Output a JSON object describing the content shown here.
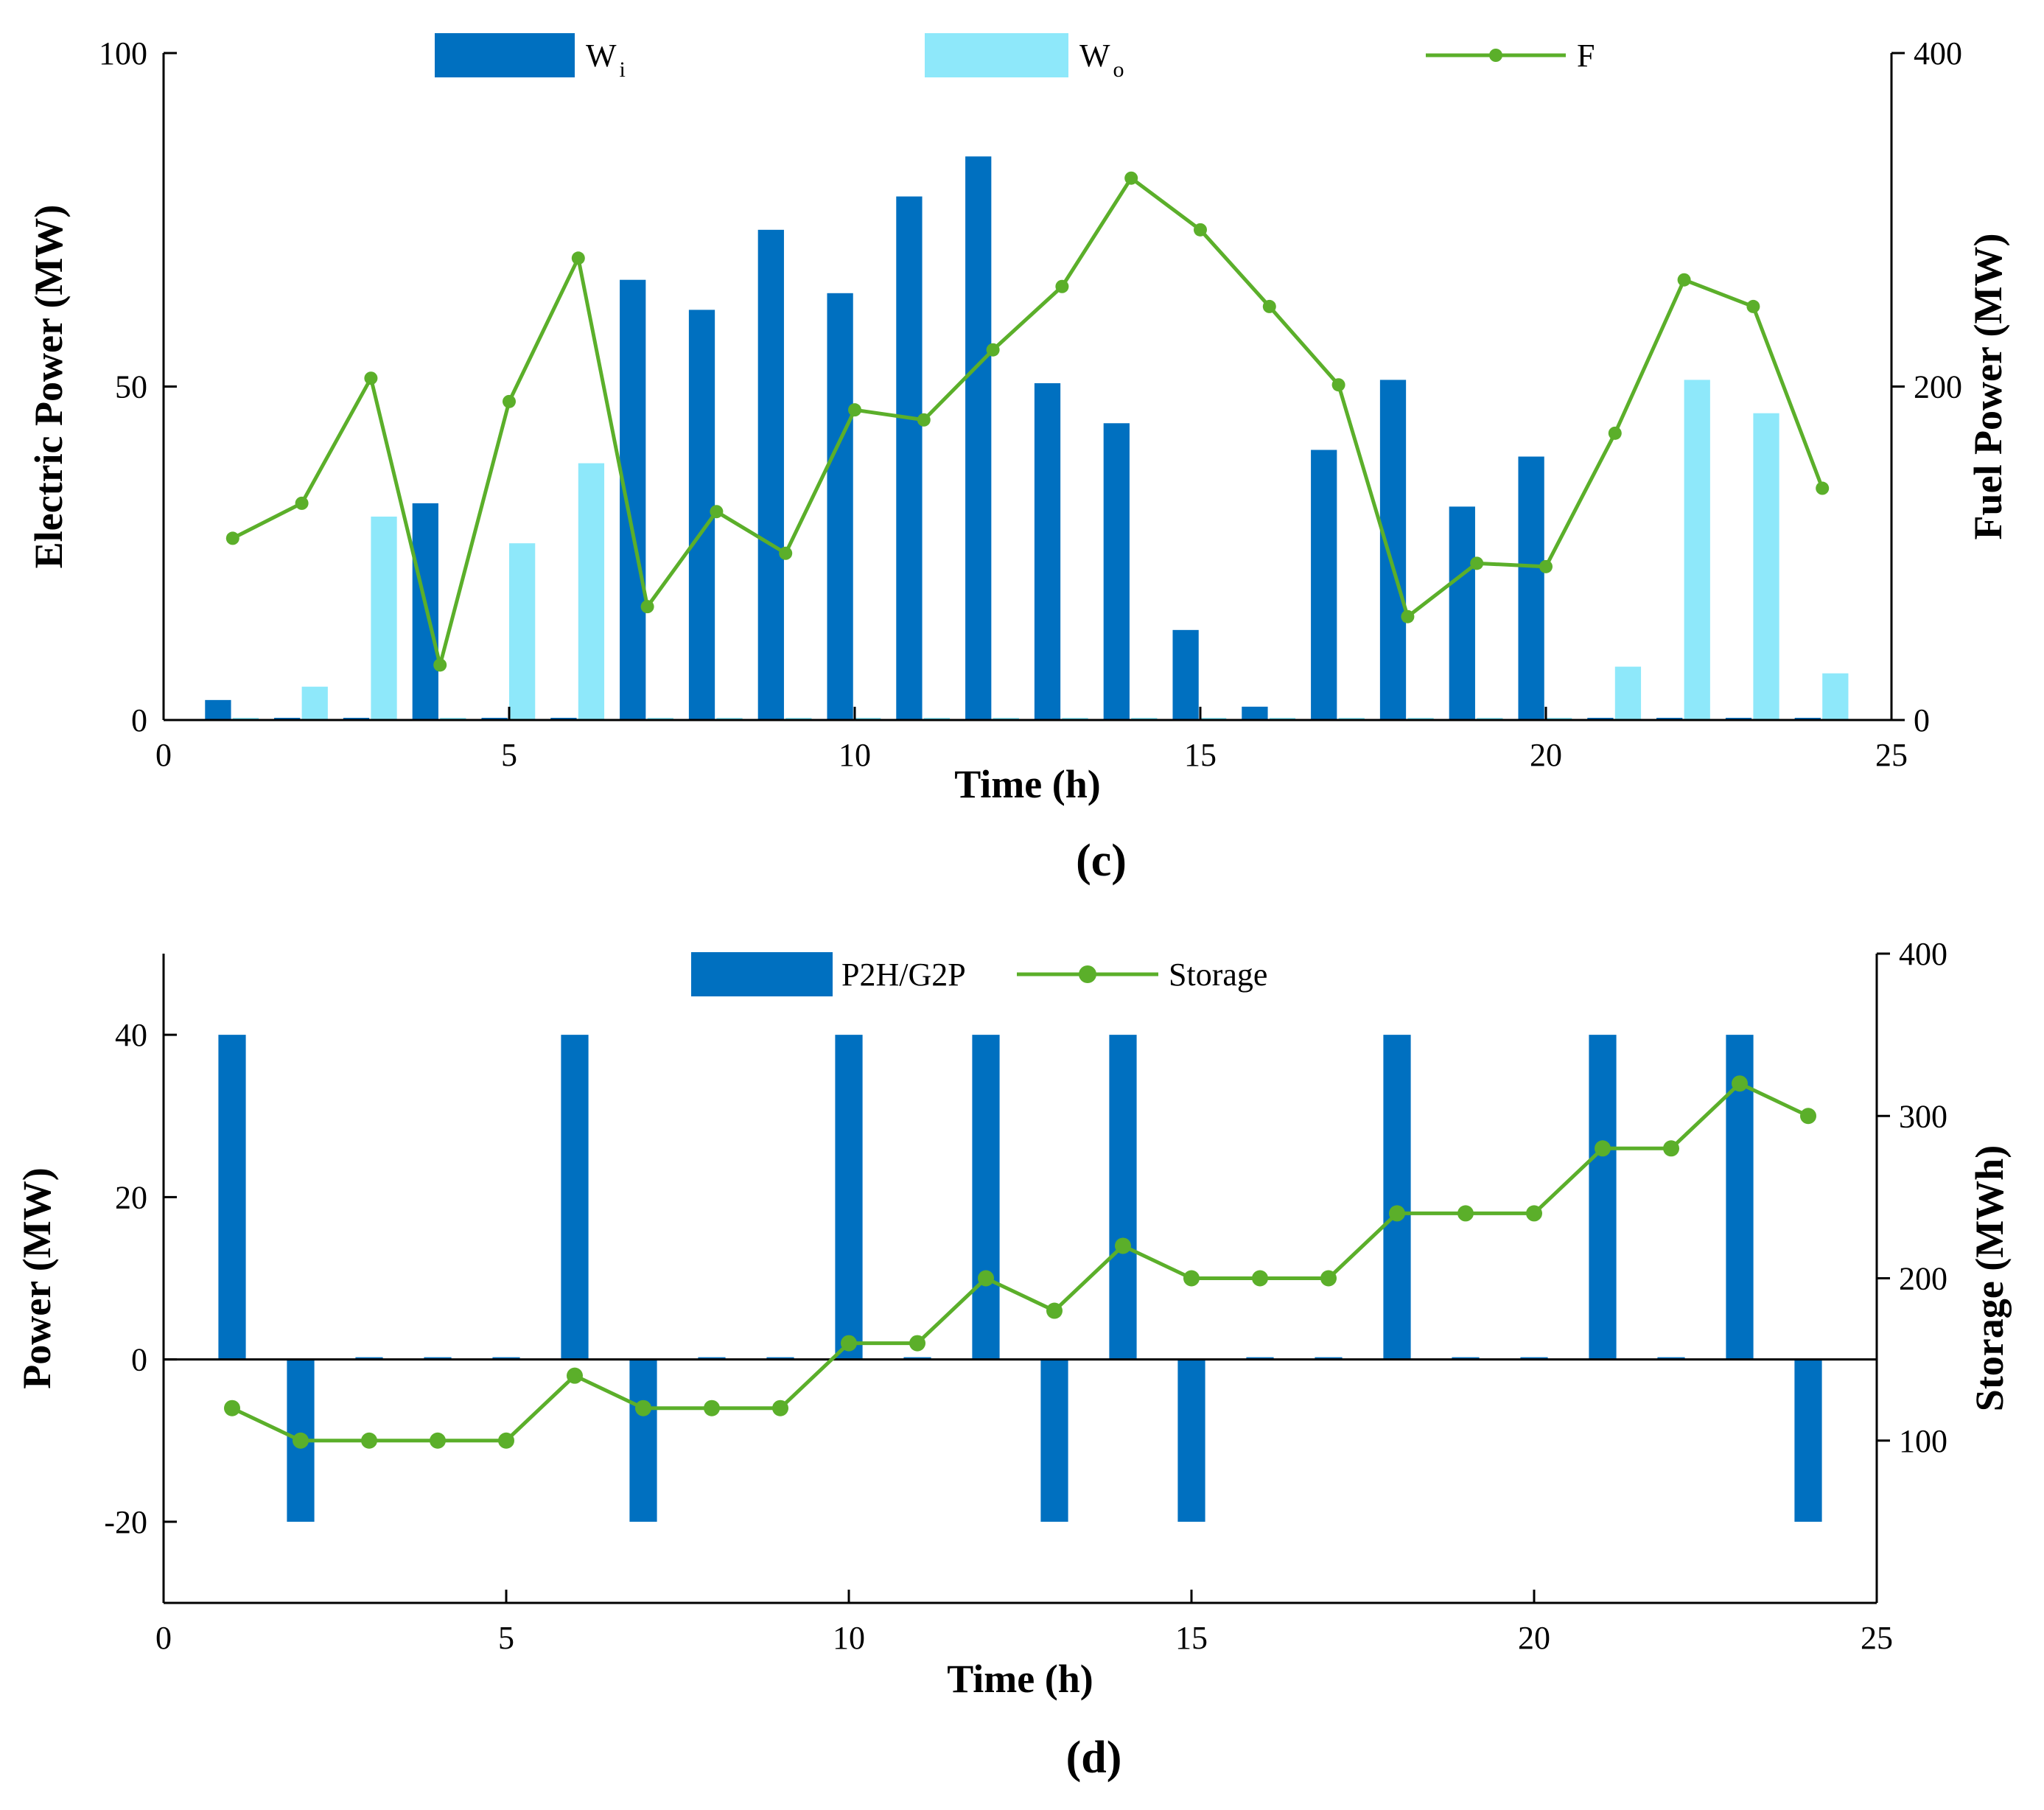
{
  "chart_data": [
    {
      "type": "bar+line",
      "panel_label": "(c)",
      "xlabel": "Time (h)",
      "ylabel": "Electric Power (MW)",
      "y2label": "Fuel Power (MW)",
      "xlim": [
        0,
        25
      ],
      "ylim": [
        0,
        100
      ],
      "y2lim": [
        0,
        400
      ],
      "xticks": [
        0,
        5,
        10,
        15,
        20,
        25
      ],
      "yticks": [
        0,
        50,
        100
      ],
      "y2ticks": [
        0,
        200,
        400
      ],
      "legend_position": "top",
      "x": [
        1,
        2,
        3,
        4,
        5,
        6,
        7,
        8,
        9,
        10,
        11,
        12,
        13,
        14,
        15,
        16,
        17,
        18,
        19,
        20,
        21,
        22,
        23,
        24
      ],
      "series": [
        {
          "name": "W",
          "subscript": "i",
          "axis": "left",
          "kind": "bar",
          "color": "#0070C0",
          "values": [
            3,
            0,
            0,
            32.5,
            0,
            0,
            66,
            61.5,
            73.5,
            64,
            78.5,
            84.5,
            50.5,
            44.5,
            13.5,
            2,
            40.5,
            51,
            32,
            39.5,
            0,
            0,
            0,
            0
          ]
        },
        {
          "name": "W",
          "subscript": "o",
          "axis": "left",
          "kind": "bar",
          "color": "#8EE8FA",
          "values": [
            0,
            5,
            30.5,
            0,
            26.5,
            38.5,
            0,
            0,
            0,
            0,
            0,
            0,
            0,
            0,
            0,
            0,
            0,
            0,
            0,
            0,
            8,
            51,
            46,
            7
          ]
        },
        {
          "name": "F",
          "axis": "right",
          "kind": "line",
          "color": "#5BAF2A",
          "values": [
            109,
            130,
            205,
            33,
            191,
            277,
            68,
            125,
            100,
            186,
            180,
            222,
            260,
            325,
            294,
            248,
            201,
            62,
            94,
            92,
            172,
            264,
            248,
            139
          ]
        }
      ]
    },
    {
      "type": "bar+line",
      "panel_label": "(d)",
      "xlabel": "Time (h)",
      "ylabel": "Power (MW)",
      "y2label": "Storage (MWh)",
      "xlim": [
        0,
        25
      ],
      "ylim": [
        -30,
        50
      ],
      "y2lim": [
        0,
        400
      ],
      "xticks": [
        0,
        5,
        10,
        15,
        20,
        25
      ],
      "yticks": [
        -20,
        0,
        20,
        40
      ],
      "y2ticks": [
        100,
        200,
        300,
        400
      ],
      "legend_position": "top",
      "x": [
        1,
        2,
        3,
        4,
        5,
        6,
        7,
        8,
        9,
        10,
        11,
        12,
        13,
        14,
        15,
        16,
        17,
        18,
        19,
        20,
        21,
        22,
        23,
        24
      ],
      "series": [
        {
          "name": "P2H/G2P",
          "axis": "left",
          "kind": "bar",
          "color": "#0070C0",
          "values": [
            40,
            -20,
            0,
            0,
            0,
            40,
            -20,
            0,
            0,
            40,
            0,
            40,
            -20,
            40,
            -20,
            0,
            0,
            40,
            0,
            0,
            40,
            0,
            40,
            -20
          ]
        },
        {
          "name": "Storage",
          "axis": "right",
          "kind": "line",
          "color": "#5BAF2A",
          "values": [
            120,
            100,
            100,
            100,
            100,
            140,
            120,
            120,
            120,
            160,
            160,
            200,
            180,
            220,
            200,
            200,
            200,
            240,
            240,
            240,
            280,
            280,
            320,
            300
          ]
        }
      ]
    }
  ]
}
